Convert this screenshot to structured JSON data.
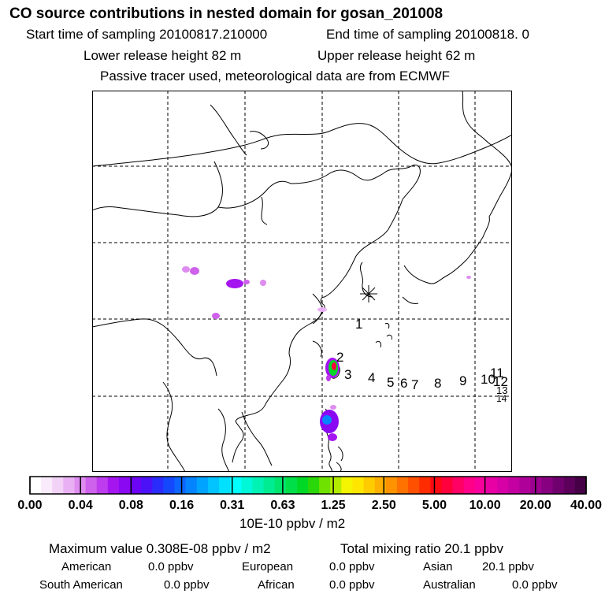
{
  "header": {
    "title": "CO  source contributions in nested domain for gosan_201008",
    "start_time": "Start time of sampling 20100817.210000",
    "end_time": "End time of sampling 20100818.     0",
    "lower_release": "Lower release height   82 m",
    "upper_release": "Upper release height   62 m",
    "tracer_note": "Passive tracer used, meteorological data are from ECMWF"
  },
  "chart_data": {
    "type": "heatmap",
    "title": "CO  source contributions in nested domain for gosan_201008",
    "grid": true,
    "receptor_marker": "asterisk",
    "trajectory_labels": [
      "1",
      "2",
      "3",
      "4",
      "5",
      "6",
      "7",
      "8",
      "9",
      "10",
      "11",
      "12",
      "13",
      "14"
    ],
    "colorbar": {
      "tick_labels": [
        "0.00",
        "0.04",
        "0.08",
        "0.16",
        "0.31",
        "0.63",
        "1.25",
        "2.50",
        "5.00",
        "10.00",
        "20.00",
        "40.00"
      ],
      "unit": "10E-10 ppbv / m2",
      "colors": [
        "#ffffff",
        "#f9ebfb",
        "#f2d2f7",
        "#e9b1f3",
        "#de8cef",
        "#cf62ec",
        "#bd3ced",
        "#a515f0",
        "#8b08f3",
        "#6c05f5",
        "#4b12f8",
        "#2a2cfb",
        "#1548fd",
        "#0c66ff",
        "#0584ff",
        "#00a3ff",
        "#00c3ff",
        "#00e0ff",
        "#00ffff",
        "#00f8d8",
        "#00f2b5",
        "#00ec92",
        "#00e56e",
        "#00df4a",
        "#00d826",
        "#2ad80a",
        "#70e200",
        "#b4ec00",
        "#f4f400",
        "#ffe600",
        "#ffcc00",
        "#ffb000",
        "#ff9200",
        "#ff7200",
        "#ff5000",
        "#ff2c00",
        "#ff0a14",
        "#ff003c",
        "#ff0064",
        "#ff0088",
        "#f7009c",
        "#e800a4",
        "#d600a6",
        "#c400a2",
        "#b0009a",
        "#9c008e",
        "#860080",
        "#70006e",
        "#5c005c",
        "#460046"
      ]
    }
  },
  "stats": {
    "max_value": "Maximum value  0.308E-08 ppbv / m2",
    "total_mixing": "Total mixing ratio      20.1 ppbv"
  },
  "regions": {
    "american_label": "American",
    "american_value": "0.0 ppbv",
    "european_label": "European",
    "european_value": "0.0 ppbv",
    "asian_label": "Asian",
    "asian_value": "20.1 ppbv",
    "south_american_label": "South American",
    "south_american_value": "0.0 ppbv",
    "african_label": "African",
    "african_value": "0.0 ppbv",
    "australian_label": "Australian",
    "australian_value": "0.0 ppbv"
  }
}
